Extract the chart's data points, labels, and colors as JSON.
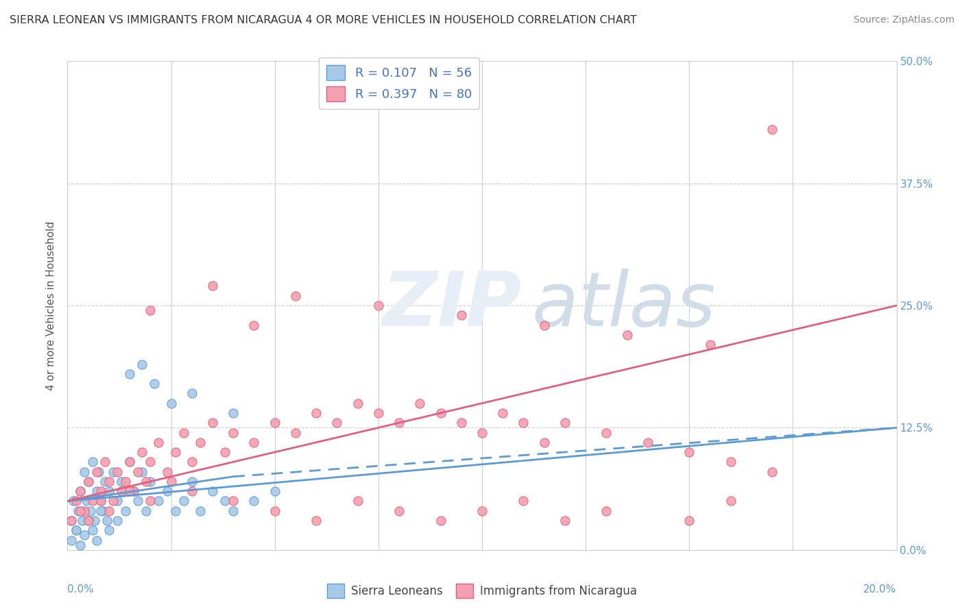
{
  "title": "SIERRA LEONEAN VS IMMIGRANTS FROM NICARAGUA 4 OR MORE VEHICLES IN HOUSEHOLD CORRELATION CHART",
  "source": "Source: ZipAtlas.com",
  "ylabel": "4 or more Vehicles in Household",
  "ytick_vals": [
    0.0,
    12.5,
    25.0,
    37.5,
    50.0
  ],
  "xlim": [
    0.0,
    20.0
  ],
  "ylim": [
    0.0,
    50.0
  ],
  "color_blue": "#a8c8e8",
  "color_pink": "#f4a0b0",
  "color_blue_edge": "#5b9bd5",
  "color_pink_edge": "#e06080",
  "color_line_blue": "#5b9bd5",
  "color_line_pink": "#e06080",
  "sierra_x": [
    0.1,
    0.15,
    0.2,
    0.25,
    0.3,
    0.35,
    0.4,
    0.45,
    0.5,
    0.55,
    0.6,
    0.65,
    0.7,
    0.75,
    0.8,
    0.85,
    0.9,
    0.95,
    1.0,
    1.1,
    1.2,
    1.3,
    1.4,
    1.5,
    1.6,
    1.7,
    1.8,
    1.9,
    2.0,
    2.2,
    2.4,
    2.6,
    2.8,
    3.0,
    3.2,
    3.5,
    3.8,
    4.0,
    4.5,
    5.0,
    0.1,
    0.2,
    0.3,
    0.4,
    0.5,
    0.6,
    0.7,
    0.8,
    1.0,
    1.2,
    1.5,
    1.8,
    2.1,
    2.5,
    3.0,
    4.0
  ],
  "sierra_y": [
    3.0,
    5.0,
    2.0,
    4.0,
    6.0,
    3.0,
    8.0,
    5.0,
    7.0,
    4.0,
    9.0,
    3.0,
    6.0,
    8.0,
    5.0,
    4.0,
    7.0,
    3.0,
    6.0,
    8.0,
    5.0,
    7.0,
    4.0,
    9.0,
    6.0,
    5.0,
    8.0,
    4.0,
    7.0,
    5.0,
    6.0,
    4.0,
    5.0,
    7.0,
    4.0,
    6.0,
    5.0,
    4.0,
    5.0,
    6.0,
    1.0,
    2.0,
    0.5,
    1.5,
    3.0,
    2.0,
    1.0,
    4.0,
    2.0,
    3.0,
    18.0,
    19.0,
    17.0,
    15.0,
    16.0,
    14.0
  ],
  "nicaragua_x": [
    0.1,
    0.2,
    0.3,
    0.4,
    0.5,
    0.6,
    0.7,
    0.8,
    0.9,
    1.0,
    1.1,
    1.2,
    1.3,
    1.4,
    1.5,
    1.6,
    1.7,
    1.8,
    1.9,
    2.0,
    2.2,
    2.4,
    2.6,
    2.8,
    3.0,
    3.2,
    3.5,
    3.8,
    4.0,
    4.5,
    5.0,
    5.5,
    6.0,
    6.5,
    7.0,
    7.5,
    8.0,
    8.5,
    9.0,
    9.5,
    10.0,
    10.5,
    11.0,
    11.5,
    12.0,
    13.0,
    14.0,
    15.0,
    16.0,
    17.0,
    0.3,
    0.5,
    0.8,
    1.0,
    1.5,
    2.0,
    2.5,
    3.0,
    4.0,
    5.0,
    6.0,
    7.0,
    8.0,
    9.0,
    10.0,
    11.0,
    12.0,
    13.0,
    15.0,
    16.0,
    3.5,
    5.5,
    7.5,
    9.5,
    11.5,
    13.5,
    15.5,
    2.0,
    4.5,
    17.0
  ],
  "nicaragua_y": [
    3.0,
    5.0,
    6.0,
    4.0,
    7.0,
    5.0,
    8.0,
    6.0,
    9.0,
    7.0,
    5.0,
    8.0,
    6.0,
    7.0,
    9.0,
    6.0,
    8.0,
    10.0,
    7.0,
    9.0,
    11.0,
    8.0,
    10.0,
    12.0,
    9.0,
    11.0,
    13.0,
    10.0,
    12.0,
    11.0,
    13.0,
    12.0,
    14.0,
    13.0,
    15.0,
    14.0,
    13.0,
    15.0,
    14.0,
    13.0,
    12.0,
    14.0,
    13.0,
    11.0,
    13.0,
    12.0,
    11.0,
    10.0,
    9.0,
    8.0,
    4.0,
    3.0,
    5.0,
    4.0,
    6.0,
    5.0,
    7.0,
    6.0,
    5.0,
    4.0,
    3.0,
    5.0,
    4.0,
    3.0,
    4.0,
    5.0,
    3.0,
    4.0,
    3.0,
    5.0,
    27.0,
    26.0,
    25.0,
    24.0,
    23.0,
    22.0,
    21.0,
    24.5,
    23.0,
    43.0
  ]
}
